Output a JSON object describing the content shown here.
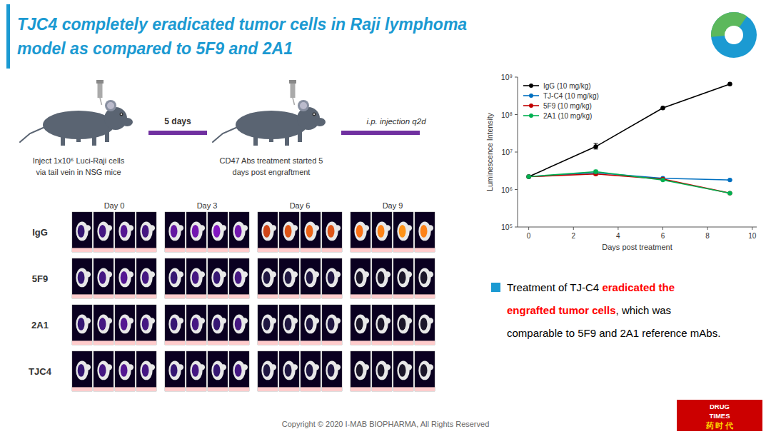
{
  "chart_data": {
    "type": "line",
    "title": "TJC4 completely eradicated tumor cells in Raji lymphoma",
    "subtitle": "model as compared to 5F9 and 2A1",
    "x_label": "Days post treatment",
    "y_label": "Luminescence Intensity",
    "x": [
      0,
      3,
      6,
      9
    ],
    "series": [
      {
        "name": "IgG (10 mg/kg)",
        "color": "#000000",
        "marker": "circle",
        "values": [
          2200000.0,
          14000000.0,
          150000000.0,
          650000000.0
        ],
        "error_low": [
          0,
          2000000.0,
          0,
          0
        ],
        "error_high": [
          0,
          3000000.0,
          0,
          0
        ]
      },
      {
        "name": "TJ-C4 (10 mg/kg)",
        "color": "#0070C0",
        "marker": "circle",
        "values": [
          2200000.0,
          2800000.0,
          2000000.0,
          1800000.0
        ],
        "error_low": [
          0,
          300000.0,
          0,
          0
        ],
        "error_high": [
          0,
          300000.0,
          0,
          0
        ]
      },
      {
        "name": "5F9 (10 mg/kg)",
        "color": "#C00000",
        "marker": "circle",
        "values": [
          2200000.0,
          2600000.0,
          1900000.0,
          800000.0
        ],
        "error_low": [
          0,
          200000.0,
          0,
          0
        ],
        "error_high": [
          0,
          200000.0,
          0,
          0
        ]
      },
      {
        "name": "2A1 (10 mg/kg)",
        "color": "#00B050",
        "marker": "circle",
        "values": [
          2200000.0,
          3000000.0,
          1800000.0,
          800000.0
        ],
        "error_low": [
          0,
          300000.0,
          0,
          0
        ],
        "error_high": [
          0,
          300000.0,
          0,
          0
        ]
      }
    ],
    "xlim": [
      -0.5,
      10.2
    ],
    "xticks": [
      0,
      2,
      4,
      6,
      8,
      10
    ],
    "ylim": [
      100000,
      1000000000
    ],
    "yticks": [
      {
        "value": 100000,
        "label": "10⁵"
      },
      {
        "value": 1000000,
        "label": "10⁶"
      },
      {
        "value": 10000000,
        "label": "10⁷"
      },
      {
        "value": 100000000,
        "label": "10⁸"
      },
      {
        "value": 1000000000,
        "label": "10⁹"
      }
    ],
    "log": "y",
    "grid": false,
    "legend": "upper left",
    "annotations": [
      "5 days",
      "i.p. injection q2d",
      "Inject 1x10⁶ Luci-Raji cells",
      "via tail vein in NSG mice",
      "CD47 Abs treatment started 5",
      "days post engraftment",
      "IgG",
      "5F9",
      "2A1",
      "TJC4",
      "Day 0",
      "Day 3",
      "Day 6",
      "Day 9",
      "Treatment of TJ-C4 ",
      "eradicated the",
      "engrafted tumor cells",
      ", which was",
      "comparable to 5F9 and 2A1 reference mAbs.",
      "Copyright © 2020 I-MAB BIOPHARMA, All Rights Reserved",
      "DRUG",
      "TIMES",
      "药 时 代"
    ]
  }
}
